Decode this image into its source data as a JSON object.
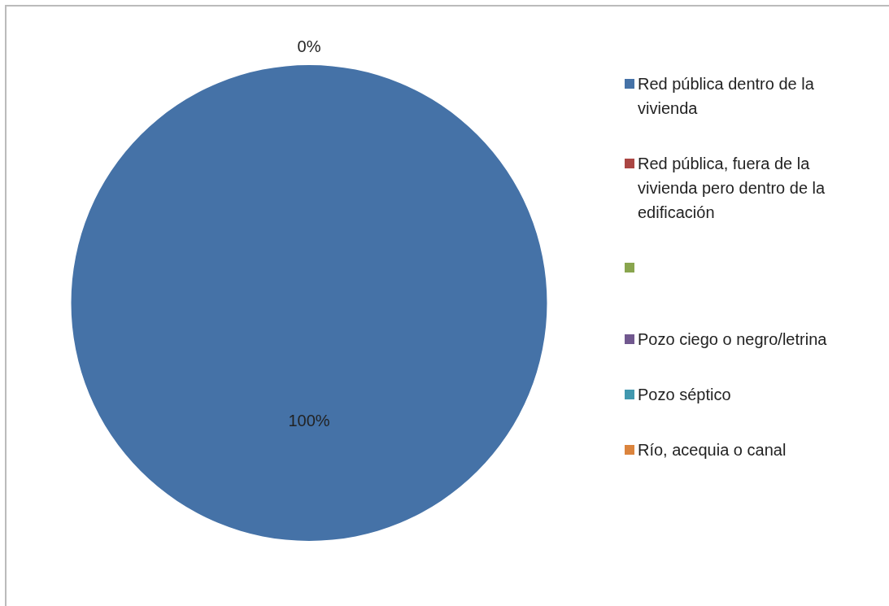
{
  "chart_data": {
    "type": "pie",
    "categories": [
      "Red pública dentro de la vivienda",
      "Red pública, fuera de la vivienda pero dentro de la edificación",
      null,
      "Pozo ciego o negro/letrina",
      "Pozo séptico",
      "Río, acequia o canal"
    ],
    "values": [
      100,
      0,
      0,
      0,
      0,
      0
    ],
    "colors": [
      "#4572a7",
      "#aa4643",
      "#89a54e",
      "#71588f",
      "#4198af",
      "#db843d"
    ],
    "value_labels": [
      "100%",
      "0%",
      null,
      null,
      null,
      null
    ],
    "legend": "right"
  }
}
